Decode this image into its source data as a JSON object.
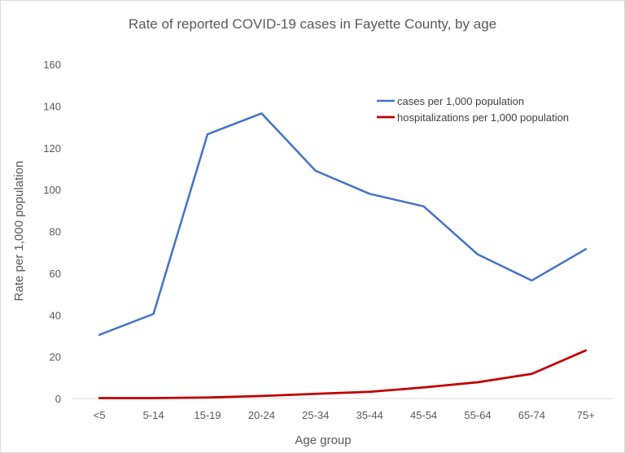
{
  "chart_data": {
    "type": "line",
    "title": "Rate of reported COVID-19 cases in Fayette County, by age",
    "xlabel": "Age group",
    "ylabel": "Rate per 1,000 population",
    "ylim": [
      0,
      160
    ],
    "yticks": [
      0,
      20,
      40,
      60,
      80,
      100,
      120,
      140,
      160
    ],
    "grid": false,
    "legend_position": "top-right",
    "categories": [
      "<5",
      "5-14",
      "15-19",
      "20-24",
      "25-34",
      "35-44",
      "45-54",
      "55-64",
      "65-74",
      "75+"
    ],
    "series": [
      {
        "name": "cases per 1,000 population",
        "color": "#4472c4",
        "values": [
          30.5,
          40.5,
          126.5,
          136.5,
          109,
          98,
          92,
          69,
          56.5,
          71.5
        ]
      },
      {
        "name": "hospitalizations per 1,000 population",
        "color": "#c00000",
        "values": [
          0.2,
          0.2,
          0.5,
          1.2,
          2.2,
          3.2,
          5.3,
          7.8,
          11.8,
          23
        ]
      }
    ]
  }
}
